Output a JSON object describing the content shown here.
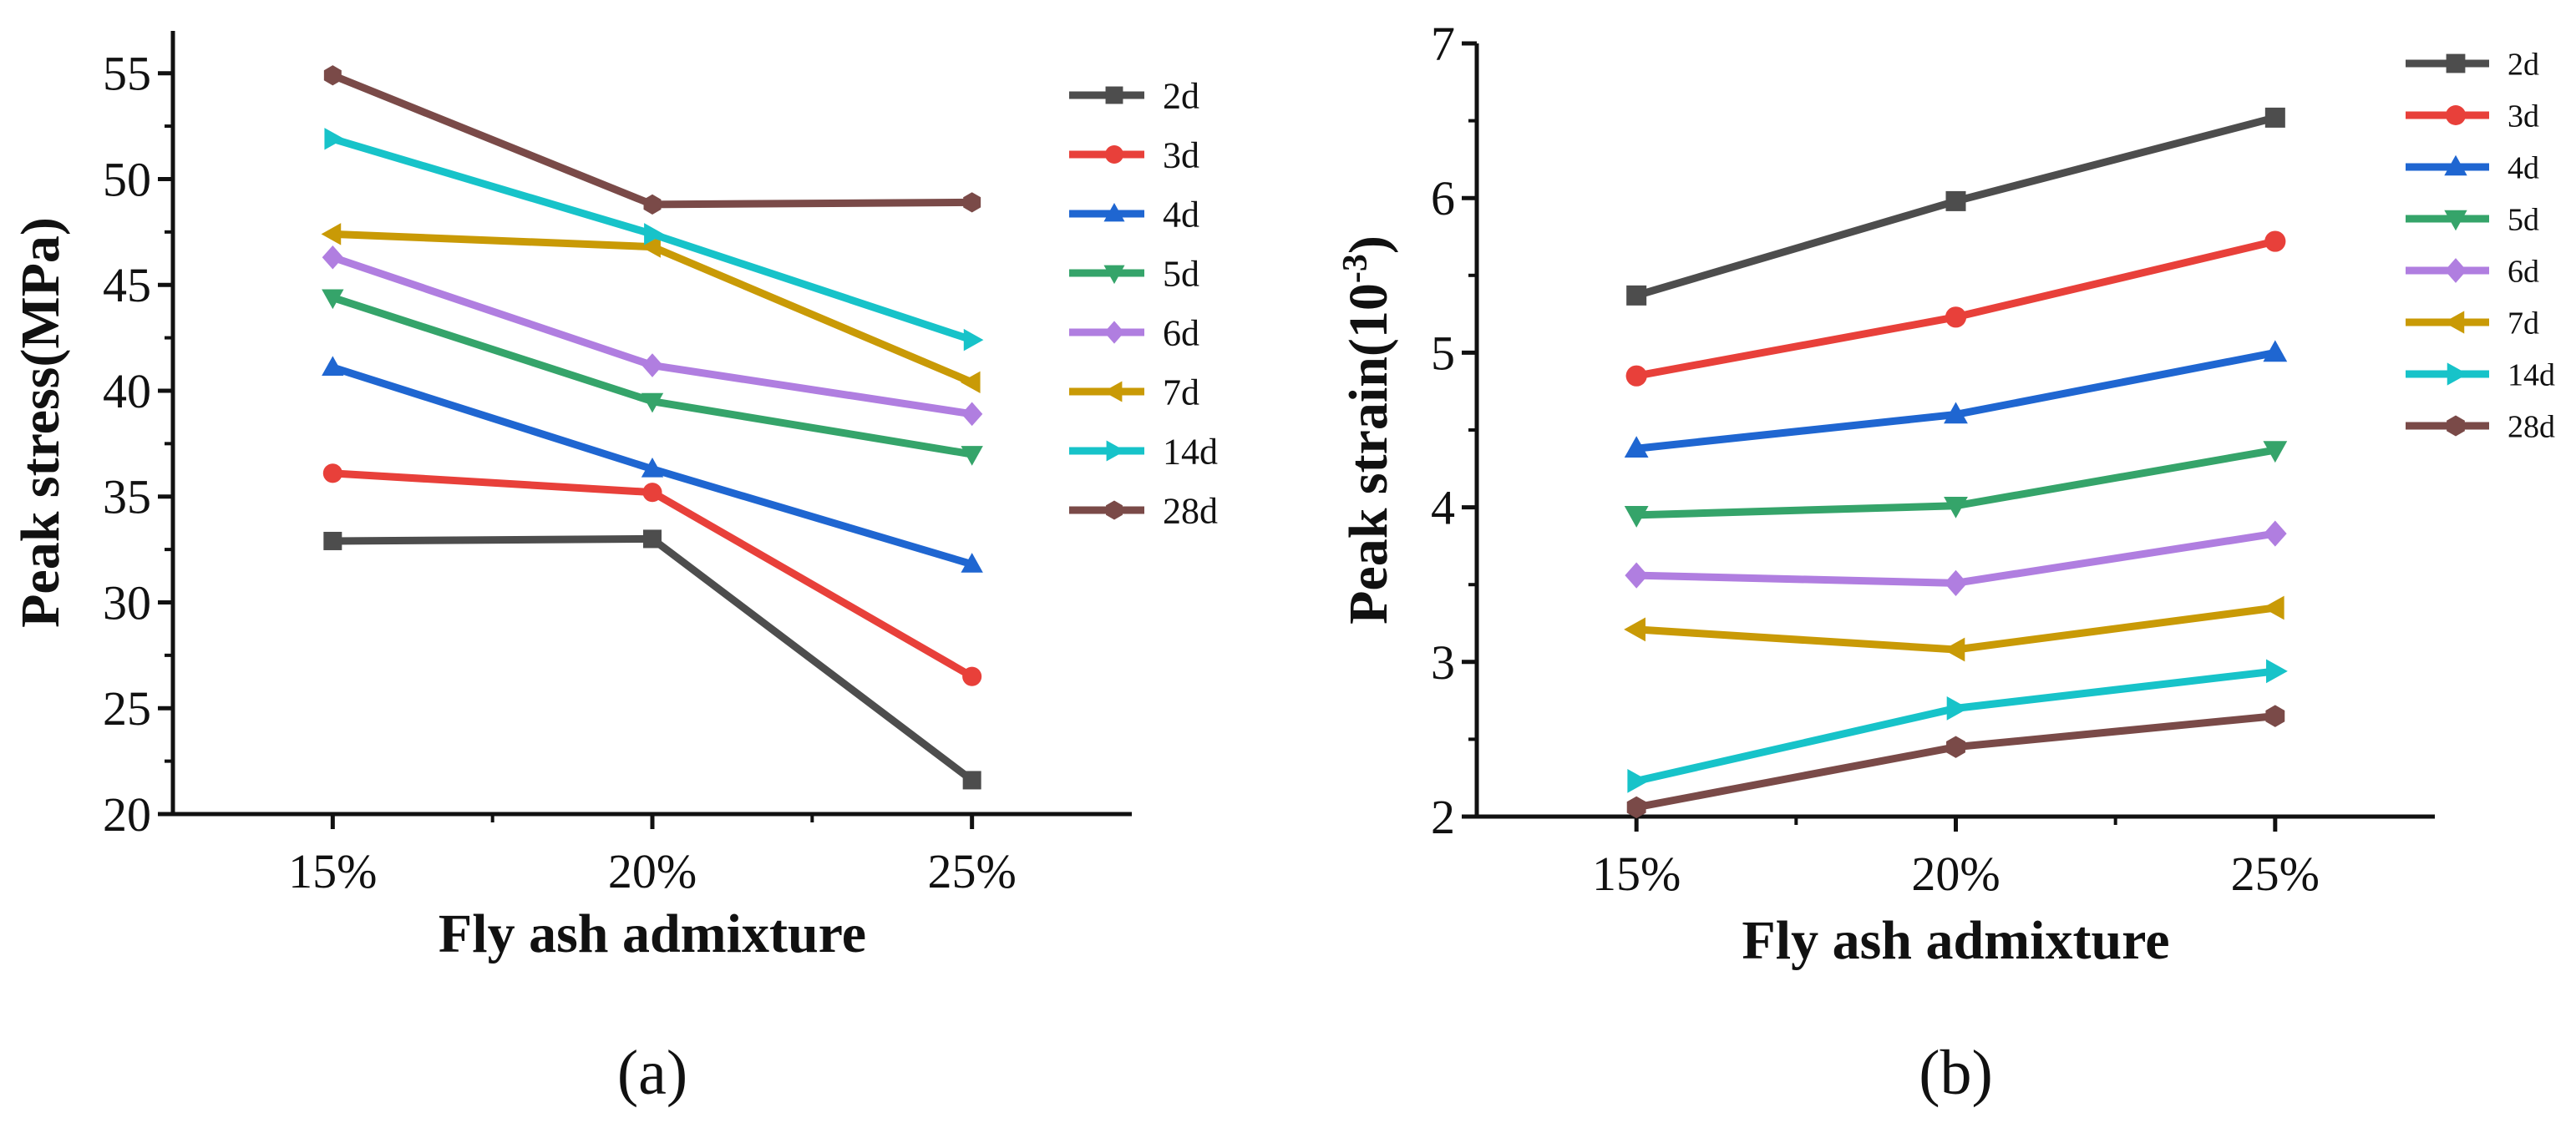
{
  "chart_data": [
    {
      "id": "a",
      "type": "line",
      "panel_label": "(a)",
      "xlabel": "Fly ash admixture",
      "ylabel": "Peak stress(MPa)",
      "categories": [
        "15%",
        "20%",
        "25%"
      ],
      "ylim": [
        20,
        57
      ],
      "yticks": [
        20,
        25,
        30,
        35,
        40,
        45,
        50,
        55
      ],
      "legend_position": "top-right",
      "series": [
        {
          "name": "2d",
          "color": "#4d4d4d",
          "marker": "square",
          "values": [
            32.9,
            33.0,
            21.6
          ]
        },
        {
          "name": "3d",
          "color": "#e8403a",
          "marker": "circle",
          "values": [
            36.1,
            35.2,
            26.5
          ]
        },
        {
          "name": "4d",
          "color": "#1f66d1",
          "marker": "triangle-up",
          "values": [
            41.1,
            36.3,
            31.8
          ]
        },
        {
          "name": "5d",
          "color": "#35a46a",
          "marker": "triangle-down",
          "values": [
            44.4,
            39.5,
            37.0
          ]
        },
        {
          "name": "6d",
          "color": "#b07ee0",
          "marker": "diamond",
          "values": [
            46.3,
            41.2,
            38.9
          ]
        },
        {
          "name": "7d",
          "color": "#c99a06",
          "marker": "triangle-left",
          "values": [
            47.4,
            46.8,
            40.4
          ]
        },
        {
          "name": "14d",
          "color": "#17c3c9",
          "marker": "triangle-right",
          "values": [
            51.9,
            47.4,
            42.4
          ]
        },
        {
          "name": "28d",
          "color": "#7a4a48",
          "marker": "hexagon",
          "values": [
            54.9,
            48.8,
            48.9
          ]
        }
      ]
    },
    {
      "id": "b",
      "type": "line",
      "panel_label": "(b)",
      "xlabel": "Fly ash admixture",
      "ylabel": "Peak strain(10",
      "ylabel_sup": "-3",
      "ylabel_end": ")",
      "categories": [
        "15%",
        "20%",
        "25%"
      ],
      "ylim": [
        2,
        7
      ],
      "yticks": [
        2,
        3,
        4,
        5,
        6,
        7
      ],
      "legend_position": "top-right",
      "series": [
        {
          "name": "2d",
          "color": "#4d4d4d",
          "marker": "square",
          "values": [
            5.37,
            5.98,
            6.52
          ]
        },
        {
          "name": "3d",
          "color": "#e8403a",
          "marker": "circle",
          "values": [
            4.85,
            5.23,
            5.72
          ]
        },
        {
          "name": "4d",
          "color": "#1f66d1",
          "marker": "triangle-up",
          "values": [
            4.38,
            4.6,
            5.0
          ]
        },
        {
          "name": "5d",
          "color": "#35a46a",
          "marker": "triangle-down",
          "values": [
            3.95,
            4.01,
            4.37
          ]
        },
        {
          "name": "6d",
          "color": "#b07ee0",
          "marker": "diamond",
          "values": [
            3.56,
            3.51,
            3.83
          ]
        },
        {
          "name": "7d",
          "color": "#c99a06",
          "marker": "triangle-left",
          "values": [
            3.21,
            3.08,
            3.35
          ]
        },
        {
          "name": "14d",
          "color": "#17c3c9",
          "marker": "triangle-right",
          "values": [
            2.23,
            2.7,
            2.94
          ]
        },
        {
          "name": "28d",
          "color": "#7a4a48",
          "marker": "hexagon",
          "values": [
            2.06,
            2.45,
            2.65
          ]
        }
      ]
    }
  ]
}
